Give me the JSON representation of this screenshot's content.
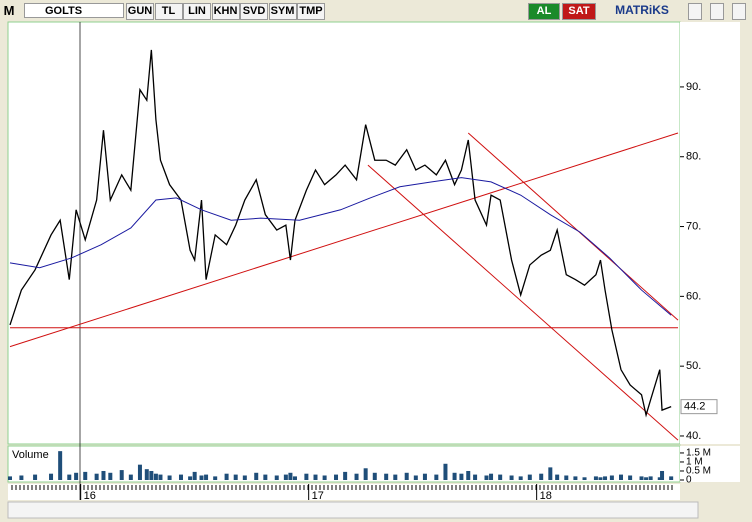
{
  "toolbar": {
    "logo": "M",
    "symbol": "GOLTS",
    "buttons": [
      "GUN",
      "TL",
      "LIN",
      "KHN",
      "SVD",
      "SYM",
      "TMP"
    ],
    "buy": "AL",
    "sell": "SAT",
    "brand": "MATRiKS"
  },
  "chart_data": {
    "type": "line",
    "xlim": [
      15.69,
      18.62
    ],
    "xticks": [
      16,
      17,
      18
    ],
    "ylim": [
      38.85,
      99.3
    ],
    "yticks": [
      {
        "value": 40,
        "label": "40."
      },
      {
        "value": 50,
        "label": "50."
      },
      {
        "value": 60,
        "label": "60."
      },
      {
        "value": 70,
        "label": "70."
      },
      {
        "value": 80,
        "label": "80."
      },
      {
        "value": 90,
        "label": "90."
      }
    ],
    "last_value": 44.2,
    "series": [
      {
        "color": "#000000",
        "x": [
          15.69,
          15.74,
          15.8,
          15.87,
          15.91,
          15.95,
          15.98,
          16.02,
          16.07,
          16.1,
          16.13,
          16.18,
          16.22,
          16.26,
          16.29,
          16.31,
          16.33,
          16.35,
          16.39,
          16.44,
          16.48,
          16.5,
          16.53,
          16.55,
          16.59,
          16.64,
          16.68,
          16.72,
          16.77,
          16.81,
          16.86,
          16.9,
          16.92,
          16.94,
          16.99,
          17.03,
          17.07,
          17.12,
          17.16,
          17.21,
          17.25,
          17.29,
          17.34,
          17.38,
          17.43,
          17.47,
          17.51,
          17.56,
          17.6,
          17.64,
          17.67,
          17.7,
          17.73,
          17.78,
          17.8,
          17.84,
          17.89,
          17.93,
          17.97,
          18.02,
          18.06,
          18.09,
          18.13,
          18.17,
          18.21,
          18.26,
          18.28,
          18.3,
          18.33,
          18.37,
          18.41,
          18.46,
          18.48,
          18.5,
          18.54,
          18.55,
          18.59
        ],
        "values": [
          55.9,
          60.9,
          63.8,
          68.8,
          70.9,
          62.4,
          72.4,
          68.1,
          73.8,
          83.8,
          73.8,
          77.4,
          75.2,
          89.6,
          88.1,
          95.3,
          85.3,
          79.5,
          76.0,
          73.8,
          66.6,
          65.2,
          73.8,
          62.4,
          68.8,
          67.4,
          70.2,
          73.8,
          76.7,
          71.7,
          69.5,
          70.2,
          65.2,
          70.9,
          75.2,
          78.1,
          76.0,
          77.4,
          78.8,
          76.7,
          84.6,
          79.5,
          79.5,
          78.8,
          81.0,
          78.1,
          78.8,
          77.4,
          79.5,
          76.0,
          78.1,
          82.4,
          73.8,
          70.2,
          74.5,
          73.8,
          65.2,
          60.2,
          64.5,
          65.9,
          66.6,
          69.5,
          63.1,
          62.4,
          61.6,
          63.1,
          65.2,
          60.9,
          55.2,
          49.5,
          47.3,
          45.9,
          43.0,
          45.2,
          49.5,
          43.7,
          44.2
        ]
      },
      {
        "color": "#1a1aa0",
        "x": [
          15.69,
          15.82,
          15.96,
          16.09,
          16.22,
          16.33,
          16.42,
          16.53,
          16.66,
          16.79,
          16.96,
          17.14,
          17.27,
          17.4,
          17.54,
          17.67,
          17.8,
          17.93,
          18.06,
          18.19,
          18.32,
          18.46,
          18.59
        ],
        "values": [
          64.8,
          64.1,
          65.5,
          67.4,
          69.8,
          73.8,
          74.1,
          72.4,
          70.9,
          71.2,
          70.9,
          72.4,
          74.1,
          75.7,
          76.4,
          77.0,
          76.4,
          74.5,
          71.7,
          69.2,
          65.5,
          60.9,
          57.3
        ]
      }
    ],
    "trendlines": [
      {
        "color": "#d01010",
        "x": [
          15.69,
          18.62
        ],
        "y": [
          52.8,
          83.4
        ]
      },
      {
        "color": "#d01010",
        "x": [
          15.69,
          18.62
        ],
        "y": [
          55.5,
          55.5
        ]
      },
      {
        "color": "#d01010",
        "x": [
          17.26,
          18.62
        ],
        "y": [
          78.8,
          39.4
        ]
      },
      {
        "color": "#d01010",
        "x": [
          17.7,
          18.62
        ],
        "y": [
          83.4,
          56.6
        ]
      }
    ],
    "volume": {
      "title": "Volume",
      "color": "#1f4e79",
      "ylim": [
        0,
        1830000
      ],
      "yticks": [
        0,
        {
          "value": 500000,
          "label": "0.5 M"
        },
        {
          "value": 1000000,
          "label": "1 M"
        },
        {
          "value": 1500000,
          "label": "1.5 M"
        }
      ],
      "values": [
        200000,
        250000,
        300000,
        350000,
        1600000,
        300000,
        400000,
        450000,
        350000,
        500000,
        400000,
        550000,
        300000,
        850000,
        600000,
        500000,
        350000,
        300000,
        250000,
        300000,
        200000,
        450000,
        250000,
        300000,
        200000,
        350000,
        300000,
        250000,
        400000,
        300000,
        250000,
        300000,
        400000,
        200000,
        350000,
        300000,
        250000,
        300000,
        450000,
        350000,
        650000,
        400000,
        350000,
        300000,
        400000,
        250000,
        350000,
        300000,
        900000,
        400000,
        350000,
        500000,
        300000,
        250000,
        350000,
        300000,
        250000,
        200000,
        300000,
        350000,
        700000,
        300000,
        250000,
        200000,
        150000,
        200000,
        150000,
        200000,
        250000,
        300000,
        250000,
        200000,
        150000,
        200000,
        150000,
        500000,
        200000
      ]
    }
  }
}
